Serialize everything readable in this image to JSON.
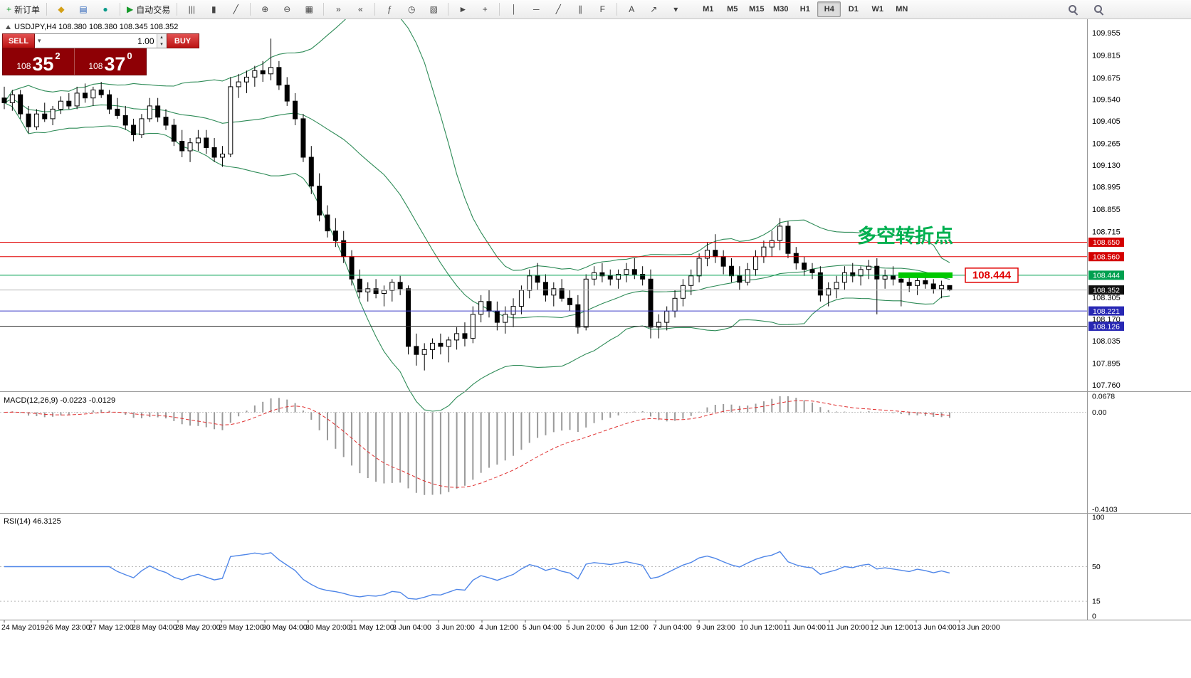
{
  "toolbar": {
    "icon_groups": [
      [
        {
          "name": "new-order-button",
          "glyph": "+",
          "cls": "green",
          "label": "新订单"
        }
      ],
      [
        {
          "name": "favorites-icon",
          "glyph": "◆",
          "cls": "gold"
        },
        {
          "name": "profiles-icon",
          "glyph": "▤",
          "cls": "blue"
        },
        {
          "name": "market-watch-icon",
          "glyph": "●",
          "cls": "teal"
        }
      ],
      [
        {
          "name": "autotrading-button",
          "glyph": "▶",
          "cls": "green",
          "label": "自动交易"
        }
      ],
      [
        {
          "name": "bar-chart-icon",
          "glyph": "|||"
        },
        {
          "name": "candlestick-chart-icon",
          "glyph": "▮"
        },
        {
          "name": "line-chart-icon",
          "glyph": "╱"
        }
      ],
      [
        {
          "name": "zoom-in-icon",
          "glyph": "⊕"
        },
        {
          "name": "zoom-out-icon",
          "glyph": "⊖"
        },
        {
          "name": "tile-windows-icon",
          "glyph": "▦"
        }
      ],
      [
        {
          "name": "auto-scroll-icon",
          "glyph": "»"
        },
        {
          "name": "chart-shift-icon",
          "glyph": "«"
        }
      ],
      [
        {
          "name": "indicators-icon",
          "glyph": "ƒ"
        },
        {
          "name": "periods-icon",
          "glyph": "◷"
        },
        {
          "name": "templates-icon",
          "glyph": "▧"
        }
      ],
      [
        {
          "name": "cursor-icon",
          "glyph": "►"
        },
        {
          "name": "crosshair-icon",
          "glyph": "+"
        }
      ],
      [
        {
          "name": "vertical-line-icon",
          "glyph": "│"
        },
        {
          "name": "horizontal-line-icon",
          "glyph": "─"
        },
        {
          "name": "trendline-icon",
          "glyph": "╱"
        },
        {
          "name": "channel-icon",
          "glyph": "∥"
        },
        {
          "name": "fibonacci-icon",
          "glyph": "F"
        }
      ],
      [
        {
          "name": "text-tool-icon",
          "glyph": "A"
        },
        {
          "name": "arrow-tool-icon",
          "glyph": "↗"
        },
        {
          "name": "objects-dropdown-icon",
          "glyph": "▾"
        }
      ]
    ],
    "timeframes": [
      "M1",
      "M5",
      "M15",
      "M30",
      "H1",
      "H4",
      "D1",
      "W1",
      "MN"
    ],
    "active_timeframe": "H4"
  },
  "trade_panel": {
    "sell_label": "SELL",
    "buy_label": "BUY",
    "volume": "1.00",
    "sell_price": {
      "prefix": "108",
      "main": "35",
      "sup": "2"
    },
    "buy_price": {
      "prefix": "108",
      "main": "37",
      "sup": "0"
    }
  },
  "chart": {
    "header_symbol": "USDJPY,H4",
    "header_ohlc": "108.380 108.380 108.345 108.352",
    "annotation": {
      "text": "多空转折点",
      "color": "#00b050"
    },
    "callout": {
      "text": "108.444",
      "price": 108.444,
      "color": "#e00000"
    },
    "highlight_segment": {
      "price": 108.444,
      "color": "#00c800"
    }
  },
  "chart_data": {
    "type": "candlestick",
    "symbol": "USDJPY",
    "timeframe": "H4",
    "ylim": [
      107.72,
      110.01
    ],
    "ohlc": [
      [
        109.55,
        109.62,
        109.48,
        109.52
      ],
      [
        109.52,
        109.6,
        109.47,
        109.57
      ],
      [
        109.57,
        109.6,
        109.42,
        109.45
      ],
      [
        109.45,
        109.5,
        109.33,
        109.37
      ],
      [
        109.37,
        109.48,
        109.35,
        109.45
      ],
      [
        109.45,
        109.52,
        109.4,
        109.42
      ],
      [
        109.42,
        109.5,
        109.38,
        109.48
      ],
      [
        109.48,
        109.56,
        109.45,
        109.53
      ],
      [
        109.53,
        109.58,
        109.48,
        109.5
      ],
      [
        109.5,
        109.62,
        109.48,
        109.58
      ],
      [
        109.58,
        109.64,
        109.52,
        109.55
      ],
      [
        109.55,
        109.62,
        109.5,
        109.6
      ],
      [
        109.6,
        109.65,
        109.55,
        109.57
      ],
      [
        109.57,
        109.6,
        109.45,
        109.48
      ],
      [
        109.48,
        109.55,
        109.42,
        109.44
      ],
      [
        109.44,
        109.5,
        109.35,
        109.38
      ],
      [
        109.38,
        109.42,
        109.28,
        109.32
      ],
      [
        109.32,
        109.45,
        109.3,
        109.42
      ],
      [
        109.42,
        109.55,
        109.4,
        109.5
      ],
      [
        109.5,
        109.55,
        109.4,
        109.43
      ],
      [
        109.43,
        109.48,
        109.35,
        109.38
      ],
      [
        109.38,
        109.42,
        109.25,
        109.28
      ],
      [
        109.28,
        109.35,
        109.18,
        109.22
      ],
      [
        109.22,
        109.3,
        109.15,
        109.27
      ],
      [
        109.27,
        109.35,
        109.22,
        109.3
      ],
      [
        109.3,
        109.35,
        109.2,
        109.24
      ],
      [
        109.24,
        109.3,
        109.15,
        109.18
      ],
      [
        109.18,
        109.25,
        109.12,
        109.2
      ],
      [
        109.2,
        109.68,
        109.18,
        109.62
      ],
      [
        109.62,
        109.7,
        109.55,
        109.65
      ],
      [
        109.65,
        109.72,
        109.58,
        109.68
      ],
      [
        109.68,
        109.75,
        109.62,
        109.72
      ],
      [
        109.72,
        109.78,
        109.65,
        109.7
      ],
      [
        109.7,
        109.92,
        109.66,
        109.74
      ],
      [
        109.74,
        109.78,
        109.6,
        109.63
      ],
      [
        109.63,
        109.68,
        109.5,
        109.53
      ],
      [
        109.53,
        109.58,
        109.38,
        109.42
      ],
      [
        109.42,
        109.45,
        109.15,
        109.18
      ],
      [
        109.18,
        109.25,
        108.95,
        109.0
      ],
      [
        109.0,
        109.08,
        108.78,
        108.82
      ],
      [
        108.82,
        108.88,
        108.68,
        108.72
      ],
      [
        108.72,
        108.8,
        108.62,
        108.66
      ],
      [
        108.66,
        108.72,
        108.52,
        108.56
      ],
      [
        108.56,
        108.6,
        108.38,
        108.42
      ],
      [
        108.42,
        108.48,
        108.3,
        108.34
      ],
      [
        108.34,
        108.4,
        108.28,
        108.36
      ],
      [
        108.36,
        108.42,
        108.3,
        108.33
      ],
      [
        108.33,
        108.38,
        108.25,
        108.35
      ],
      [
        108.35,
        108.42,
        108.28,
        108.4
      ],
      [
        108.4,
        108.44,
        108.32,
        108.36
      ],
      [
        108.36,
        108.38,
        107.95,
        108.0
      ],
      [
        108.0,
        108.08,
        107.88,
        107.95
      ],
      [
        107.95,
        108.02,
        107.85,
        107.98
      ],
      [
        107.98,
        108.05,
        107.92,
        108.02
      ],
      [
        108.02,
        108.08,
        107.95,
        108.0
      ],
      [
        108.0,
        108.06,
        107.9,
        108.04
      ],
      [
        108.04,
        108.12,
        107.98,
        108.08
      ],
      [
        108.08,
        108.15,
        108.0,
        108.05
      ],
      [
        108.05,
        108.25,
        108.02,
        108.2
      ],
      [
        108.2,
        108.32,
        108.15,
        108.28
      ],
      [
        108.28,
        108.35,
        108.18,
        108.22
      ],
      [
        108.22,
        108.28,
        108.1,
        108.15
      ],
      [
        108.15,
        108.25,
        108.08,
        108.2
      ],
      [
        108.2,
        108.3,
        108.12,
        108.25
      ],
      [
        108.25,
        108.38,
        108.2,
        108.35
      ],
      [
        108.35,
        108.48,
        108.3,
        108.44
      ],
      [
        108.44,
        108.52,
        108.35,
        108.4
      ],
      [
        108.4,
        108.45,
        108.28,
        108.32
      ],
      [
        108.32,
        108.4,
        108.25,
        108.36
      ],
      [
        108.36,
        108.42,
        108.28,
        108.3
      ],
      [
        108.3,
        108.35,
        108.22,
        108.26
      ],
      [
        108.26,
        108.32,
        108.08,
        108.12
      ],
      [
        108.12,
        108.45,
        108.1,
        108.42
      ],
      [
        108.42,
        108.5,
        108.38,
        108.46
      ],
      [
        108.46,
        108.52,
        108.4,
        108.44
      ],
      [
        108.44,
        108.48,
        108.38,
        108.42
      ],
      [
        108.42,
        108.48,
        108.36,
        108.45
      ],
      [
        108.45,
        108.52,
        108.4,
        108.48
      ],
      [
        108.48,
        108.55,
        108.42,
        108.45
      ],
      [
        108.45,
        108.5,
        108.38,
        108.42
      ],
      [
        108.42,
        108.48,
        108.05,
        108.12
      ],
      [
        108.12,
        108.2,
        108.05,
        108.15
      ],
      [
        108.15,
        108.25,
        108.1,
        108.22
      ],
      [
        108.22,
        108.35,
        108.18,
        108.3
      ],
      [
        108.3,
        108.42,
        108.25,
        108.38
      ],
      [
        108.38,
        108.48,
        108.32,
        108.44
      ],
      [
        108.44,
        108.58,
        108.4,
        108.55
      ],
      [
        108.55,
        108.65,
        108.5,
        108.6
      ],
      [
        108.6,
        108.7,
        108.52,
        108.56
      ],
      [
        108.56,
        108.6,
        108.45,
        108.5
      ],
      [
        108.5,
        108.55,
        108.4,
        108.44
      ],
      [
        108.44,
        108.5,
        108.35,
        108.4
      ],
      [
        108.4,
        108.52,
        108.38,
        108.48
      ],
      [
        108.48,
        108.6,
        108.44,
        108.56
      ],
      [
        108.56,
        108.66,
        108.52,
        108.62
      ],
      [
        108.62,
        108.72,
        108.56,
        108.66
      ],
      [
        108.66,
        108.8,
        108.6,
        108.75
      ],
      [
        108.75,
        108.78,
        108.55,
        108.58
      ],
      [
        108.58,
        108.62,
        108.48,
        108.52
      ],
      [
        108.52,
        108.56,
        108.44,
        108.48
      ],
      [
        108.48,
        108.52,
        108.42,
        108.46
      ],
      [
        108.46,
        108.5,
        108.28,
        108.32
      ],
      [
        108.32,
        108.4,
        108.25,
        108.36
      ],
      [
        108.36,
        108.44,
        108.3,
        108.4
      ],
      [
        108.4,
        108.5,
        108.35,
        108.46
      ],
      [
        108.46,
        108.52,
        108.4,
        108.44
      ],
      [
        108.44,
        108.5,
        108.38,
        108.48
      ],
      [
        108.48,
        108.54,
        108.42,
        108.5
      ],
      [
        108.5,
        108.55,
        108.2,
        108.42
      ],
      [
        108.42,
        108.48,
        108.36,
        108.44
      ],
      [
        108.44,
        108.5,
        108.38,
        108.42
      ],
      [
        108.42,
        108.46,
        108.25,
        108.4
      ],
      [
        108.4,
        108.46,
        108.34,
        108.38
      ],
      [
        108.38,
        108.44,
        108.32,
        108.41
      ],
      [
        108.41,
        108.45,
        108.36,
        108.39
      ],
      [
        108.39,
        108.42,
        108.33,
        108.36
      ],
      [
        108.36,
        108.41,
        108.3,
        108.38
      ],
      [
        108.38,
        108.38,
        108.345,
        108.352
      ]
    ],
    "x_labels": [
      "24 May 2019",
      "26 May 23:00",
      "27 May 12:00",
      "28 May 04:00",
      "28 May 20:00",
      "29 May 12:00",
      "30 May 04:00",
      "30 May 20:00",
      "31 May 12:00",
      "3 Jun 04:00",
      "3 Jun 20:00",
      "4 Jun 12:00",
      "5 Jun 04:00",
      "5 Jun 20:00",
      "6 Jun 12:00",
      "7 Jun 04:00",
      "9 Jun 23:00",
      "10 Jun 12:00",
      "11 Jun 04:00",
      "11 Jun 20:00",
      "12 Jun 12:00",
      "13 Jun 04:00",
      "13 Jun 20:00"
    ],
    "price_ticks": [
      109.955,
      109.815,
      109.675,
      109.54,
      109.405,
      109.265,
      109.13,
      108.995,
      108.855,
      108.715,
      108.305,
      108.17,
      108.035,
      107.895,
      107.76
    ],
    "hlines": [
      {
        "price": 108.65,
        "label": "108.650",
        "color": "#e00000",
        "tag": "#d40000"
      },
      {
        "price": 108.56,
        "label": "108.560",
        "color": "#e00000",
        "tag": "#d40000"
      },
      {
        "price": 108.444,
        "label": "108.444",
        "color": "#00a050",
        "tag": "#00a050"
      },
      {
        "price": 108.352,
        "label": "108.352",
        "color": "#b4b4b4",
        "tag": "#101010"
      },
      {
        "price": 108.221,
        "label": "108.221",
        "color": "#3c3cc8",
        "tag": "#2828b4"
      },
      {
        "price": 108.126,
        "label": "108.126",
        "color": "#303030",
        "tag": "#2828b4"
      }
    ],
    "indicators": {
      "bollinger": {
        "period": 20,
        "deviation": 2,
        "color": "#2e8b57"
      },
      "macd": {
        "label": "MACD(12,26,9) -0.0223 -0.0129",
        "fast": 12,
        "slow": 26,
        "signal": 9,
        "ylim": [
          -0.4103,
          0.0678
        ],
        "scale": [
          {
            "v": 0.0678,
            "t": "0.0678"
          },
          {
            "v": 0,
            "t": "0.00"
          },
          {
            "v": -0.4103,
            "t": "-0.4103"
          }
        ],
        "hist_color": "#9a9a9a",
        "signal_color": "#e03030"
      },
      "rsi": {
        "label": "RSI(14) 46.3125",
        "period": 14,
        "color": "#4f86e8",
        "scale": [
          {
            "v": 100,
            "t": "100"
          },
          {
            "v": 50,
            "t": "50"
          },
          {
            "v": 15,
            "t": "15"
          },
          {
            "v": 0,
            "t": "0"
          }
        ],
        "levels": [
          50,
          15
        ]
      }
    }
  }
}
